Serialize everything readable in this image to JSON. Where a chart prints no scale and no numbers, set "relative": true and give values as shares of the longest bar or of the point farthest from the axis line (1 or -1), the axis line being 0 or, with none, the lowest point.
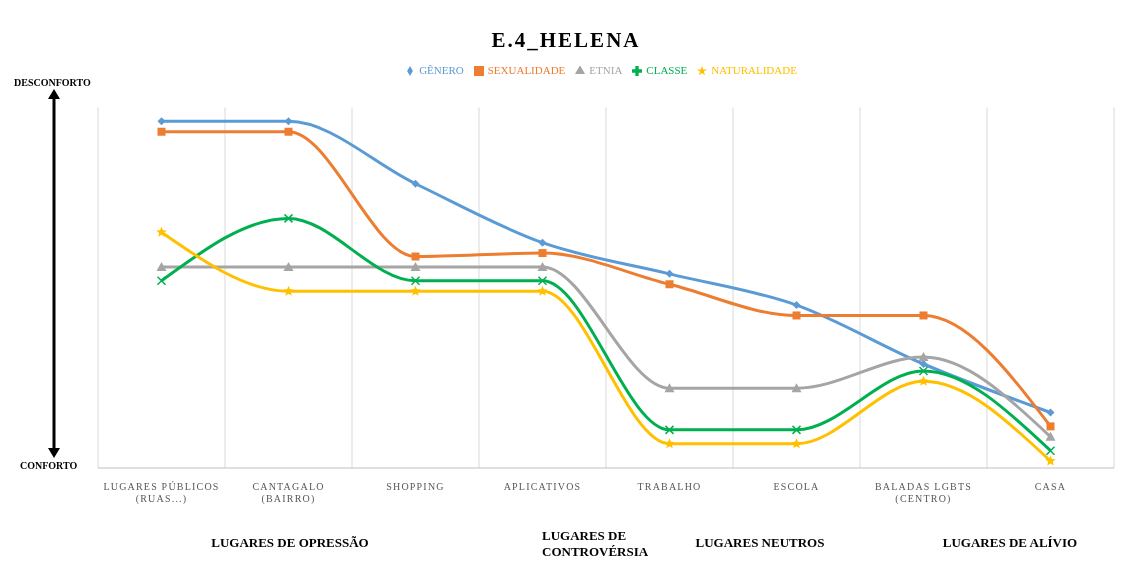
{
  "chart_data": {
    "type": "line",
    "title": "E.4_HELENA",
    "relative": true,
    "legend": "top",
    "grid": "x",
    "line_style": "solid",
    "categories": [
      "LUGARES PÚBLICOS (RUAS...)",
      "CANTAGALO (BAIRRO)",
      "SHOPPING",
      "APLICATIVOS",
      "TRABALHO",
      "ESCOLA",
      "BALADAS LGBTS (CENTRO)",
      "CASA"
    ],
    "series": [
      {
        "name": "GÊNERO",
        "color": "#5b9bd5",
        "marker": "diamond",
        "values": [
          1,
          1,
          0.82,
          0.65,
          0.56,
          0.47,
          0.3,
          0.16
        ]
      },
      {
        "name": "SEXUALIDADE",
        "color": "#ed7d31",
        "marker": "square",
        "values": [
          0.97,
          0.97,
          0.61,
          0.62,
          0.53,
          0.44,
          0.44,
          0.12
        ]
      },
      {
        "name": "ETNIA",
        "color": "#a5a5a5",
        "marker": "triangle",
        "values": [
          0.58,
          0.58,
          0.58,
          0.58,
          0.23,
          0.23,
          0.32,
          0.09
        ]
      },
      {
        "name": "CLASSE",
        "color": "#00b050",
        "marker": "cross",
        "values": [
          0.54,
          0.72,
          0.54,
          0.54,
          0.11,
          0.11,
          0.28,
          0.05
        ]
      },
      {
        "name": "NATURALIDADE",
        "color": "#ffc000",
        "marker": "star",
        "values": [
          0.68,
          0.51,
          0.51,
          0.51,
          0.07,
          0.07,
          0.25,
          0.02
        ]
      }
    ],
    "annotations": [
      "DESCONFORTO",
      "CONFORTO",
      "LUGARES DE OPRESSÃO",
      "LUGARES DE CONTROVÉRSIA",
      "LUGARES NEUTROS",
      "LUGARES DE ALÍVIO"
    ]
  }
}
